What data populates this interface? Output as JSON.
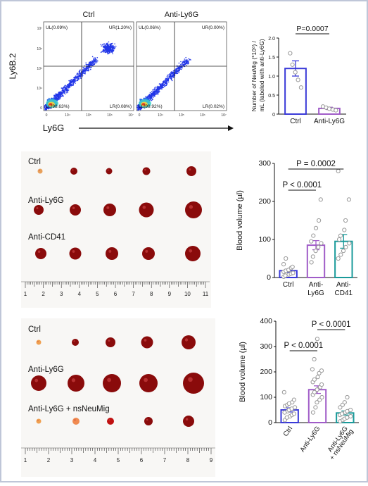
{
  "flow": {
    "panels": [
      {
        "title": "Ctrl",
        "UL": "UL(0.09%)",
        "UR": "UR(1.20%)",
        "LL": "LL(98.63%)",
        "LR": "LR(0.08%)"
      },
      {
        "title": "Anti-Ly6G",
        "UL": "UL(0.06%)",
        "UR": "UR(0.00%)",
        "LL": "LL(99.92%)",
        "LR": "LR(0.02%)"
      }
    ],
    "ylabel": "Ly6B.2",
    "xlabel": "Ly6G",
    "yticks": [
      "10⁷",
      "10⁶",
      "10⁵",
      "10⁴",
      "0"
    ],
    "xticks": [
      "0",
      "10⁴",
      "10⁵",
      "10⁶",
      "10⁷"
    ]
  },
  "chart_data": [
    {
      "type": "bar",
      "categories": [
        "Ctrl",
        "Anti-Ly6G"
      ],
      "values": [
        1.2,
        0.15
      ],
      "errors": [
        0.2,
        0.03
      ],
      "points": [
        [
          1.6,
          1.3,
          1.1,
          0.9,
          0.7
        ],
        [
          0.2,
          0.17,
          0.14,
          0.12,
          0.1
        ]
      ],
      "ylabel": "Number of NeuMig (*10⁶) / mL (labeled with anti-Ly6G)",
      "yticks": [
        "0",
        "0.5",
        "1.0",
        "1.5",
        "2.0"
      ],
      "ylim": [
        0,
        2.0
      ],
      "annotation": "P=0.0007",
      "colors": [
        "#3a3ad8",
        "#a05cc8"
      ]
    },
    {
      "type": "bar",
      "categories": [
        "Ctrl",
        "Anti-Ly6G",
        "Anti-CD41"
      ],
      "values": [
        18,
        85,
        95
      ],
      "errors": [
        4,
        12,
        18
      ],
      "points": [
        [
          2,
          5,
          8,
          10,
          12,
          15,
          18,
          20,
          25,
          28,
          35,
          50
        ],
        [
          40,
          55,
          70,
          80,
          90,
          95,
          110,
          130,
          150,
          205
        ],
        [
          50,
          60,
          70,
          80,
          90,
          100,
          110,
          125,
          150,
          205,
          280
        ]
      ],
      "ylabel": "Blood volume (µl)",
      "yticks": [
        "0",
        "100",
        "200",
        "300"
      ],
      "ylim": [
        0,
        300
      ],
      "annotations": [
        "P < 0.0001",
        "P = 0.0002"
      ],
      "colors": [
        "#3a3ad8",
        "#a05cc8",
        "#1a9a9a"
      ]
    },
    {
      "type": "bar",
      "categories": [
        "Ctrl",
        "Anti-Ly6G",
        "Anti-Ly6G + nsNeuMig"
      ],
      "values": [
        50,
        130,
        38
      ],
      "errors": [
        8,
        15,
        8
      ],
      "points": [
        [
          10,
          20,
          25,
          30,
          35,
          40,
          45,
          50,
          55,
          60,
          65,
          70,
          75,
          80,
          90,
          120
        ],
        [
          40,
          60,
          80,
          90,
          100,
          110,
          120,
          130,
          140,
          150,
          160,
          170,
          180,
          195,
          205,
          210,
          250,
          330
        ],
        [
          5,
          10,
          15,
          20,
          25,
          30,
          35,
          40,
          45,
          50,
          60,
          70,
          80,
          100
        ]
      ],
      "ylabel": "Blood volume (µl)",
      "yticks": [
        "0",
        "100",
        "200",
        "300",
        "400"
      ],
      "ylim": [
        0,
        400
      ],
      "annotations": [
        "P < 0.0001",
        "P < 0.0001"
      ],
      "colors": [
        "#3a3ad8",
        "#a05cc8",
        "#1a9a9a"
      ]
    }
  ],
  "blood_panels": [
    {
      "rows": [
        "Ctrl",
        "Anti-Ly6G",
        "Anti-CD41"
      ],
      "ruler": [
        "1",
        "2",
        "3",
        "4",
        "5",
        "6",
        "7",
        "8",
        "9",
        "10",
        "11"
      ]
    },
    {
      "rows": [
        "Ctrl",
        "Anti-Ly6G",
        "Anti-Ly6G + nsNeuMig"
      ],
      "ruler": [
        "1",
        "2",
        "3",
        "4",
        "5",
        "6",
        "7",
        "8",
        "9"
      ]
    }
  ]
}
